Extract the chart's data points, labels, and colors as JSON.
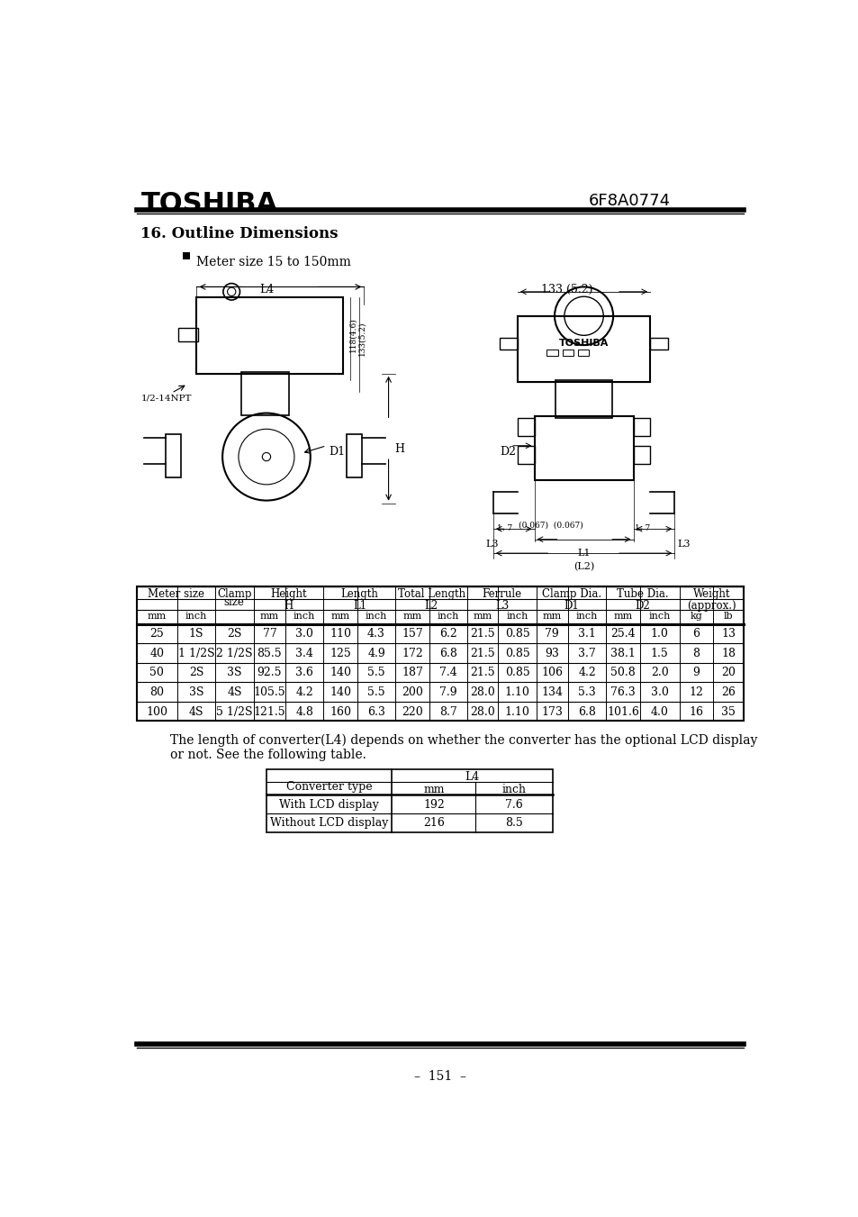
{
  "page_bg": "#ffffff",
  "brand": "TOSHIBA",
  "doc_number": "6F8A0774",
  "section_title": "16. Outline Dimensions",
  "bullet_text": "Meter size 15 to 150mm",
  "note_text": "The length of converter(L4) depends on whether the converter has the optional LCD display\nor not. See the following table.",
  "page_number": "151",
  "main_table_data": [
    [
      "25",
      "1S",
      "2S",
      "77",
      "3.0",
      "110",
      "4.3",
      "157",
      "6.2",
      "21.5",
      "0.85",
      "79",
      "3.1",
      "25.4",
      "1.0",
      "6",
      "13"
    ],
    [
      "40",
      "1 1/2S",
      "2 1/2S",
      "85.5",
      "3.4",
      "125",
      "4.9",
      "172",
      "6.8",
      "21.5",
      "0.85",
      "93",
      "3.7",
      "38.1",
      "1.5",
      "8",
      "18"
    ],
    [
      "50",
      "2S",
      "3S",
      "92.5",
      "3.6",
      "140",
      "5.5",
      "187",
      "7.4",
      "21.5",
      "0.85",
      "106",
      "4.2",
      "50.8",
      "2.0",
      "9",
      "20"
    ],
    [
      "80",
      "3S",
      "4S",
      "105.5",
      "4.2",
      "140",
      "5.5",
      "200",
      "7.9",
      "28.0",
      "1.10",
      "134",
      "5.3",
      "76.3",
      "3.0",
      "12",
      "26"
    ],
    [
      "100",
      "4S",
      "5 1/2S",
      "121.5",
      "4.8",
      "160",
      "6.3",
      "220",
      "8.7",
      "28.0",
      "1.10",
      "173",
      "6.8",
      "101.6",
      "4.0",
      "16",
      "35"
    ]
  ],
  "l4_table_data": [
    [
      "With LCD display",
      "192",
      "7.6"
    ],
    [
      "Without LCD display",
      "216",
      "8.5"
    ]
  ]
}
